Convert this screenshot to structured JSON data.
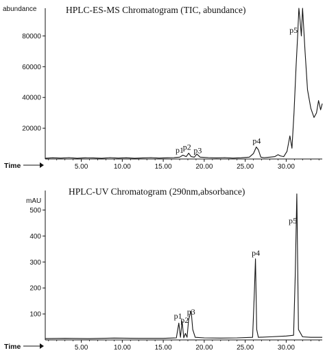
{
  "chart_data": [
    {
      "type": "line",
      "title": "HPLC-ES-MS Chromatogram (TIC, abundance)",
      "ylabel": "abundance",
      "xlabel": "Time",
      "xlim": [
        0.6,
        34.4
      ],
      "ylim": [
        0,
        98000
      ],
      "xticks": [
        5,
        10,
        15,
        20,
        25,
        30
      ],
      "xtick_labels": [
        "5.00",
        "10.00",
        "15.00",
        "20.00",
        "25.00",
        "30.00"
      ],
      "yticks": [
        20000,
        40000,
        60000,
        80000
      ],
      "ytick_labels": [
        "20000",
        "40000",
        "60000",
        "80000"
      ],
      "series": [
        {
          "x": [
            0.6,
            1.5,
            2.5,
            3.5,
            4.5,
            5.5,
            6.5,
            7.5,
            8.5,
            9.5,
            10.5,
            11.5,
            12.5,
            13.5,
            14.5,
            15.5,
            16.3,
            17.0,
            17.4,
            17.8,
            18.1,
            18.4,
            18.8,
            19.1,
            19.5,
            20.5,
            21.5,
            22.5,
            23.5,
            24.5,
            25.5,
            26.0,
            26.35,
            26.6,
            26.9,
            27.3,
            28.0,
            28.6,
            29.0,
            29.3,
            29.7,
            30.1,
            30.45,
            30.7,
            30.95,
            31.2,
            31.4,
            31.55,
            31.7,
            31.85,
            32.0,
            32.3,
            32.6,
            33.0,
            33.4,
            33.7,
            33.95,
            34.2,
            34.4
          ],
          "y": [
            500,
            800,
            600,
            900,
            500,
            800,
            700,
            500,
            900,
            600,
            800,
            500,
            700,
            900,
            600,
            800,
            900,
            1200,
            2500,
            1500,
            3800,
            1500,
            1200,
            3200,
            1200,
            900,
            700,
            900,
            600,
            800,
            1200,
            3500,
            7800,
            6000,
            1200,
            900,
            1200,
            1500,
            2800,
            2000,
            1500,
            5000,
            15000,
            7000,
            30000,
            60000,
            80000,
            98000,
            90000,
            80000,
            98000,
            70000,
            45000,
            33000,
            27000,
            30000,
            38000,
            32000,
            36000
          ]
        }
      ],
      "annotations": [
        {
          "text": "p1",
          "x": 17.0,
          "y": 4000
        },
        {
          "text": "p2",
          "x": 17.9,
          "y": 6000
        },
        {
          "text": "p3",
          "x": 19.2,
          "y": 3700
        },
        {
          "text": "p4",
          "x": 26.4,
          "y": 10000
        },
        {
          "text": "p5",
          "x": 30.9,
          "y": 82000
        }
      ]
    },
    {
      "type": "line",
      "title": "HPLC-UV Chromatogram (290nm,absorbance)",
      "ylabel": "mAU",
      "xlabel": "Time",
      "xlim": [
        0.6,
        34.4
      ],
      "ylim": [
        0,
        575
      ],
      "xticks": [
        5,
        10,
        15,
        20,
        25,
        30
      ],
      "xtick_labels": [
        "5.00",
        "10.00",
        "15.00",
        "20.00",
        "25.00",
        "30.00"
      ],
      "yticks": [
        100,
        200,
        300,
        400,
        500
      ],
      "ytick_labels": [
        "100",
        "200",
        "300",
        "400",
        "500"
      ],
      "series": [
        {
          "x": [
            0.6,
            3,
            6,
            9,
            12,
            15,
            16.6,
            16.9,
            17.1,
            17.3,
            17.5,
            17.7,
            17.9,
            18.1,
            18.4,
            18.6,
            18.9,
            20,
            22,
            24,
            25.9,
            26.1,
            26.25,
            26.4,
            26.6,
            28,
            30,
            30.9,
            31.1,
            31.3,
            31.5,
            32,
            33,
            34.4
          ],
          "y": [
            5,
            6,
            5,
            7,
            6,
            6,
            8,
            65,
            10,
            72,
            8,
            25,
            10,
            80,
            112,
            40,
            10,
            8,
            7,
            8,
            10,
            170,
            312,
            40,
            10,
            12,
            15,
            18,
            250,
            562,
            40,
            12,
            10,
            10
          ]
        }
      ],
      "annotations": [
        {
          "text": "p1",
          "x": 16.8,
          "y": 82
        },
        {
          "text": "p2",
          "x": 17.6,
          "y": 66
        },
        {
          "text": "p3",
          "x": 18.4,
          "y": 98
        },
        {
          "text": "p4",
          "x": 26.3,
          "y": 325
        },
        {
          "text": "p5",
          "x": 30.8,
          "y": 448
        }
      ]
    }
  ]
}
